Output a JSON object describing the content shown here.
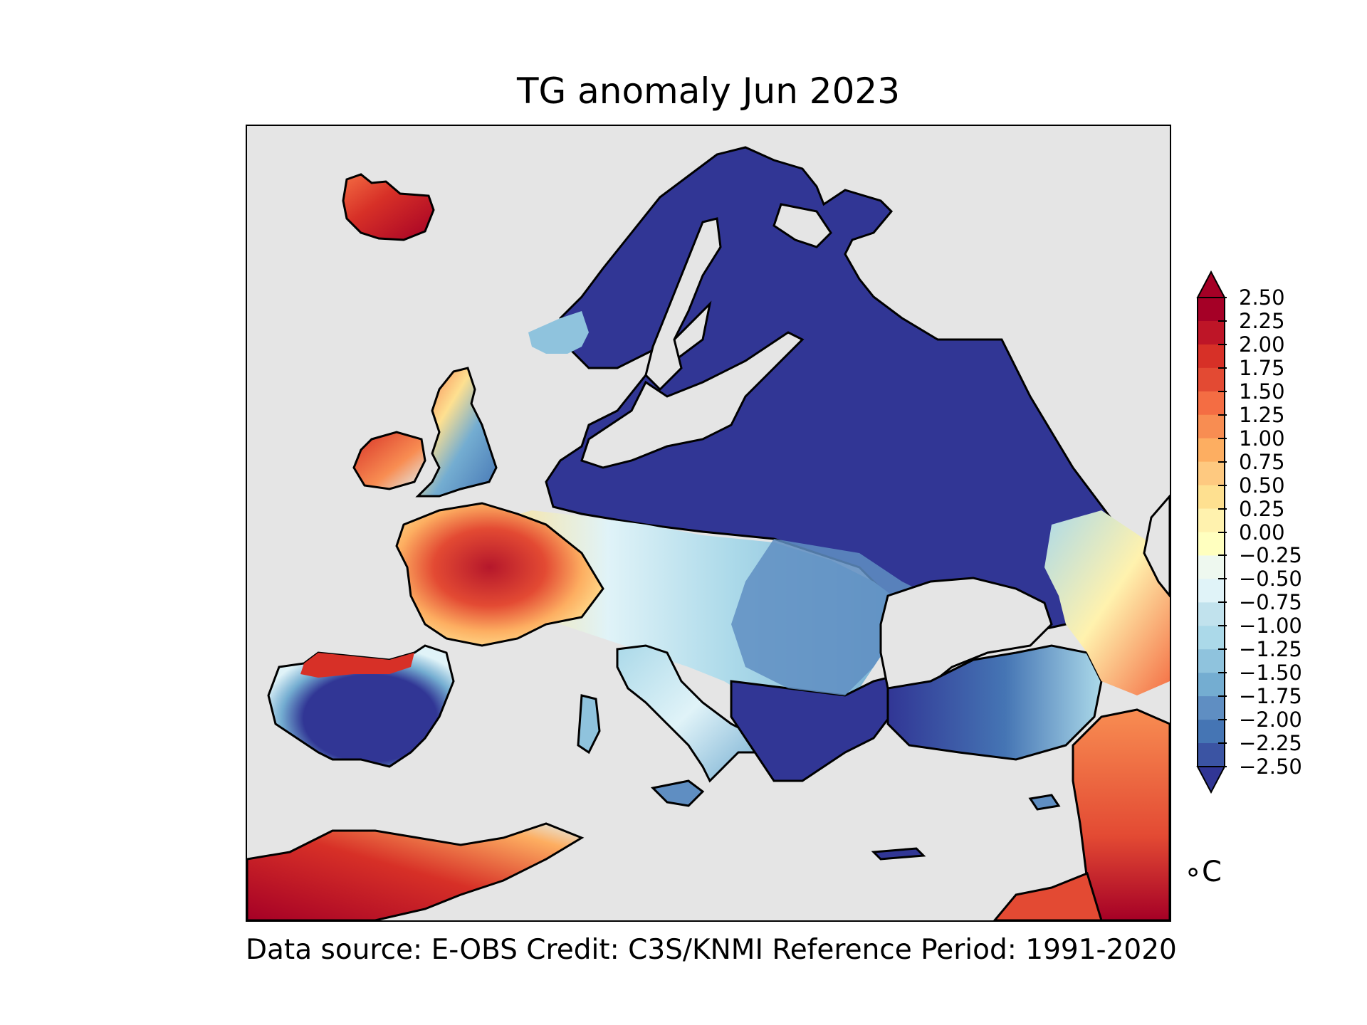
{
  "title": "TG anomaly Jun 2023",
  "footer": "Data source: E-OBS  Credit: C3S/KNMI  Reference Period: 1991-2020",
  "colorbar": {
    "unit": "∘C",
    "ticks": [
      "2.50",
      "2.25",
      "2.00",
      "1.75",
      "1.50",
      "1.25",
      "1.00",
      "0.75",
      "0.50",
      "0.25",
      "0.00",
      "−0.25",
      "−0.50",
      "−0.75",
      "−1.00",
      "−1.25",
      "−1.50",
      "−1.75",
      "−2.00",
      "−2.25",
      "−2.50"
    ],
    "colors": [
      "#a50026",
      "#be1527",
      "#d73027",
      "#e34a33",
      "#f46d43",
      "#f88d52",
      "#fdae61",
      "#fec980",
      "#fee090",
      "#fff2ae",
      "#ffffbf",
      "#eef8ef",
      "#e0f3f8",
      "#c1e2ed",
      "#abd9e9",
      "#8fc3dd",
      "#74add1",
      "#5f8ec2",
      "#4575b4",
      "#3b54a3",
      "#313695"
    ],
    "extend": "both"
  },
  "colors": {
    "background": "#ffffff",
    "ocean": "#e5e5e5",
    "coastline": "#000000"
  }
}
